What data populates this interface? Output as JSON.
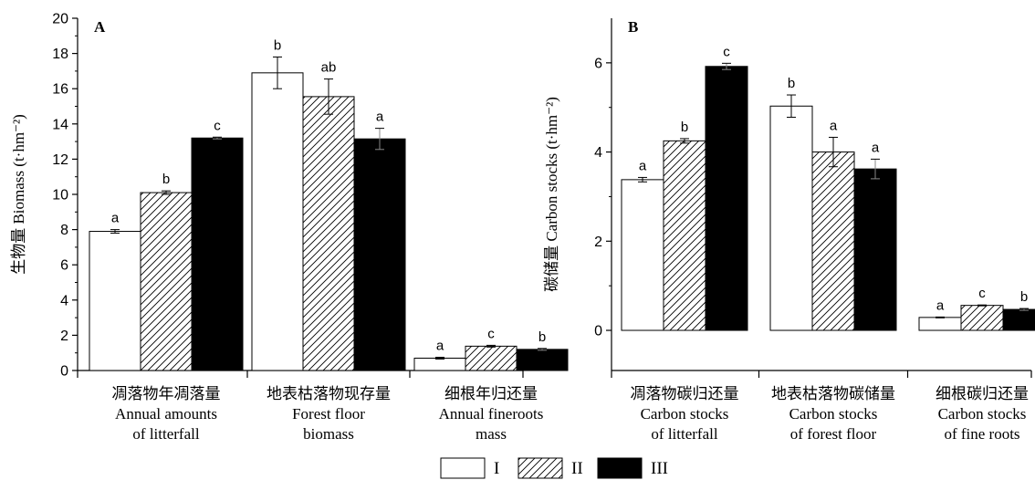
{
  "legend": {
    "entries": [
      {
        "label": "I",
        "pattern": "white"
      },
      {
        "label": "II",
        "pattern": "hatch"
      },
      {
        "label": "III",
        "pattern": "black"
      }
    ]
  },
  "colors": {
    "fill_dark": "#000000",
    "fill_light": "#ffffff",
    "stroke": "#000000"
  },
  "chart_data": [
    {
      "type": "bar",
      "panel_label": "A",
      "ylabel": "生物量 Biomass (t·hm⁻²)",
      "ylim": [
        0,
        20
      ],
      "yticks": [
        0,
        2,
        4,
        6,
        8,
        10,
        12,
        14,
        16,
        18,
        20
      ],
      "categories": [
        [
          "凋落物年凋落量",
          "Annual amounts",
          "of litterfall"
        ],
        [
          "地表枯落物现存量",
          "Forest floor",
          "biomass"
        ],
        [
          "细根年归还量",
          "Annual fineroots",
          "mass"
        ]
      ],
      "series": [
        {
          "name": "I",
          "values": [
            7.9,
            16.9,
            0.7
          ],
          "errors": [
            0.1,
            0.9,
            0.05
          ],
          "labels": [
            "a",
            "b",
            "a"
          ]
        },
        {
          "name": "II",
          "values": [
            10.1,
            15.55,
            1.38
          ],
          "errors": [
            0.1,
            1.0,
            0.05
          ],
          "labels": [
            "b",
            "ab",
            "c"
          ]
        },
        {
          "name": "III",
          "values": [
            13.2,
            13.15,
            1.2
          ],
          "errors": [
            0.05,
            0.6,
            0.05
          ],
          "labels": [
            "c",
            "a",
            "b"
          ]
        }
      ]
    },
    {
      "type": "bar",
      "panel_label": "B",
      "ylabel": "碳储量 Carbon stocks (t·hm⁻²)",
      "ylim": [
        -0.9,
        7
      ],
      "yticks": [
        0,
        2,
        4,
        6
      ],
      "categories": [
        [
          "凋落物碳归还量",
          "Carbon stocks",
          "of litterfall"
        ],
        [
          "地表枯落物碳储量",
          "Carbon stocks",
          "of forest floor"
        ],
        [
          "细根碳归还量",
          "Carbon stocks",
          "of fine roots"
        ]
      ],
      "series": [
        {
          "name": "I",
          "values": [
            3.38,
            5.03,
            0.29
          ],
          "errors": [
            0.05,
            0.25,
            0.01
          ],
          "labels": [
            "a",
            "b",
            "a"
          ]
        },
        {
          "name": "II",
          "values": [
            4.25,
            4.0,
            0.56
          ],
          "errors": [
            0.05,
            0.33,
            0.01
          ],
          "labels": [
            "b",
            "a",
            "c"
          ]
        },
        {
          "name": "III",
          "values": [
            5.92,
            3.62,
            0.47
          ],
          "errors": [
            0.07,
            0.22,
            0.02
          ],
          "labels": [
            "c",
            "a",
            "b"
          ]
        }
      ]
    }
  ]
}
